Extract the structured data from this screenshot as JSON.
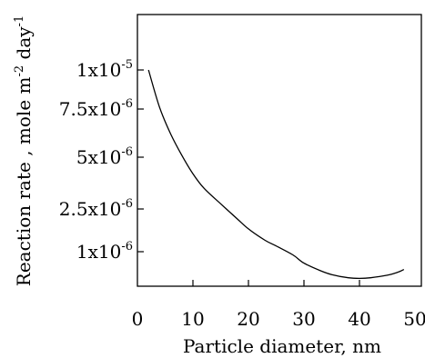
{
  "chart_data": {
    "type": "line",
    "title": "",
    "xlabel": "Particle diameter, nm",
    "ylabel": {
      "text": "Reaction rate , mole m",
      "exp1": "-2",
      "mid": " day",
      "exp2": "-1"
    },
    "xlim": [
      0,
      50
    ],
    "x_ticks": [
      {
        "value": 0,
        "label": "0"
      },
      {
        "value": 10,
        "label": "10"
      },
      {
        "value": 20,
        "label": "20"
      },
      {
        "value": 30,
        "label": "30"
      },
      {
        "value": 40,
        "label": "40"
      },
      {
        "value": 50,
        "label": "50"
      }
    ],
    "y_ticks": [
      {
        "value": 1e-06,
        "base": "1x10",
        "exp": "-6"
      },
      {
        "value": 2.5e-06,
        "base": "2.5x10",
        "exp": "-6"
      },
      {
        "value": 5e-06,
        "base": "5x10",
        "exp": "-6"
      },
      {
        "value": 7.5e-06,
        "base": "7.5x10",
        "exp": "-6"
      },
      {
        "value": 1e-05,
        "base": "1x10",
        "exp": "-5"
      }
    ],
    "grid": false,
    "series": [
      {
        "x": [
          2,
          4,
          6,
          8,
          10,
          12,
          15,
          18,
          20,
          23,
          25,
          28,
          30,
          33,
          35,
          38,
          40,
          42,
          45,
          47,
          48
        ],
        "y": [
          1e-05,
          7.6e-06,
          6.2e-06,
          5.1e-06,
          4.2e-06,
          3.5e-06,
          2.75e-06,
          2.15e-06,
          1.8e-06,
          1.4e-06,
          1.2e-06,
          9.5e-07,
          8.2e-07,
          7e-07,
          6.4e-07,
          5.9e-07,
          5.8e-07,
          5.9e-07,
          6.3e-07,
          6.8e-07,
          7.2e-07
        ]
      }
    ]
  }
}
